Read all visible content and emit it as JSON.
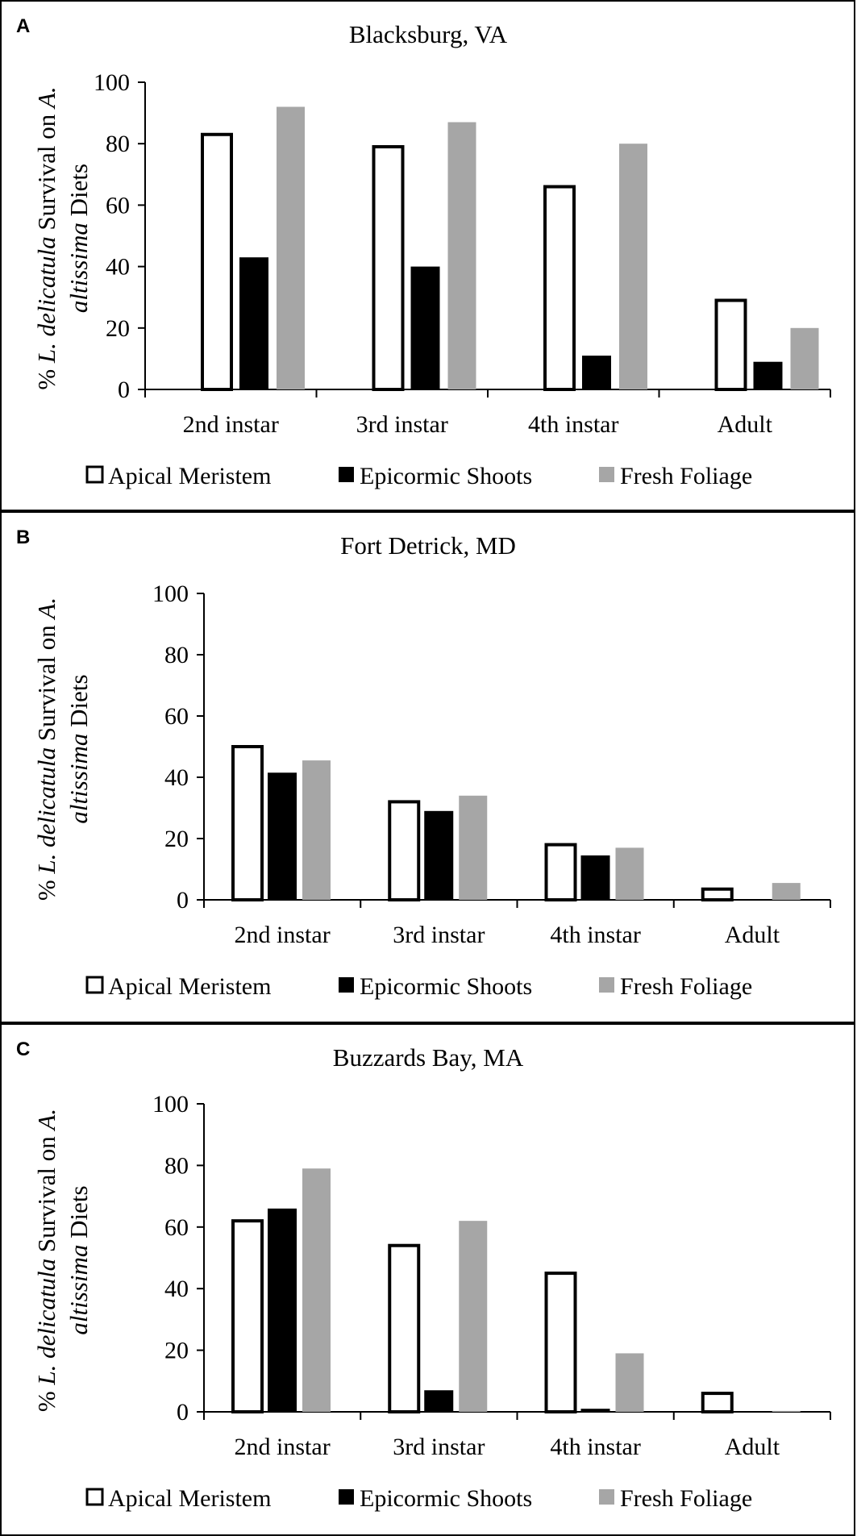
{
  "figure": {
    "colors": {
      "apical": "#ffffff",
      "epicormic": "#000000",
      "fresh": "#a6a6a6",
      "axis": "#000000",
      "frame": "#000000"
    }
  },
  "chart_data": [
    {
      "type": "bar",
      "panel_label": "A",
      "title": "Blacksburg, VA",
      "ylabel_parts": [
        "% ",
        "L. delicatula",
        " Survival on ",
        "A.",
        "altissima",
        " Diets"
      ],
      "categories": [
        "2nd instar",
        "3rd instar",
        "4th instar",
        "Adult"
      ],
      "series": [
        {
          "name": "Apical Meristem",
          "values": [
            83,
            79,
            66,
            29
          ]
        },
        {
          "name": "Epicormic Shoots",
          "values": [
            43,
            40,
            11,
            9
          ]
        },
        {
          "name": "Fresh Foliage",
          "values": [
            92,
            87,
            80,
            20
          ]
        }
      ],
      "ylim": [
        0,
        100
      ],
      "yticks": [
        0,
        20,
        40,
        60,
        80,
        100
      ],
      "legend_position": "bottom"
    },
    {
      "type": "bar",
      "panel_label": "B",
      "title": "Fort Detrick, MD",
      "ylabel_parts": [
        "% ",
        "L. delicatula",
        " Survival on ",
        "A.",
        "altissima",
        " Diets"
      ],
      "categories": [
        "2nd instar",
        "3rd instar",
        "4th instar",
        "Adult"
      ],
      "series": [
        {
          "name": "Apical Meristem",
          "values": [
            50,
            32,
            18,
            3.5
          ]
        },
        {
          "name": "Epicormic Shoots",
          "values": [
            41.5,
            29,
            14.5,
            0
          ]
        },
        {
          "name": "Fresh Foliage",
          "values": [
            45.5,
            34,
            17,
            5.5
          ]
        }
      ],
      "ylim": [
        0,
        100
      ],
      "yticks": [
        0,
        20,
        40,
        60,
        80,
        100
      ],
      "legend_position": "bottom"
    },
    {
      "type": "bar",
      "panel_label": "C",
      "title": "Buzzards Bay, MA",
      "ylabel_parts": [
        "% ",
        "L. delicatula",
        " Survival on ",
        "A.",
        "altissima",
        " Diets"
      ],
      "categories": [
        "2nd instar",
        "3rd instar",
        "4th instar",
        "Adult"
      ],
      "series": [
        {
          "name": "Apical Meristem",
          "values": [
            62,
            54,
            45,
            6
          ]
        },
        {
          "name": "Epicormic Shoots",
          "values": [
            66,
            7,
            1,
            0
          ]
        },
        {
          "name": "Fresh Foliage",
          "values": [
            79,
            62,
            19,
            0.3
          ]
        }
      ],
      "ylim": [
        0,
        100
      ],
      "yticks": [
        0,
        20,
        40,
        60,
        80,
        100
      ],
      "legend_position": "bottom"
    }
  ]
}
